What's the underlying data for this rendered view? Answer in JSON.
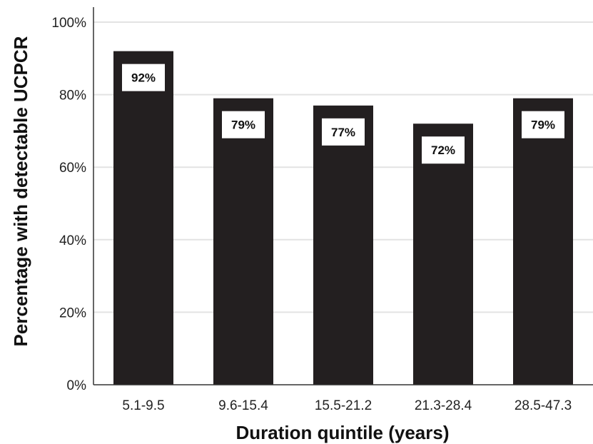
{
  "chart_data": {
    "type": "bar",
    "title": "",
    "xlabel": "Duration quintile (years)",
    "ylabel": "Percentage with detectable UCPCR",
    "categories": [
      "5.1-9.5",
      "9.6-15.4",
      "15.5-21.2",
      "21.3-28.4",
      "28.5-47.3"
    ],
    "values": [
      92,
      79,
      77,
      72,
      79
    ],
    "data_labels": [
      "92%",
      "79%",
      "77%",
      "72%",
      "79%"
    ],
    "ylim": [
      0,
      100
    ],
    "yticks": [
      0,
      20,
      40,
      60,
      80,
      100
    ],
    "ytick_labels": [
      "0%",
      "20%",
      "40%",
      "60%",
      "80%",
      "100%"
    ],
    "grid": true,
    "legend": "none",
    "colors": {
      "bar": "#231f20",
      "grid": "#e3e3e3",
      "axis": "#333333",
      "label_box": "#ffffff"
    }
  }
}
